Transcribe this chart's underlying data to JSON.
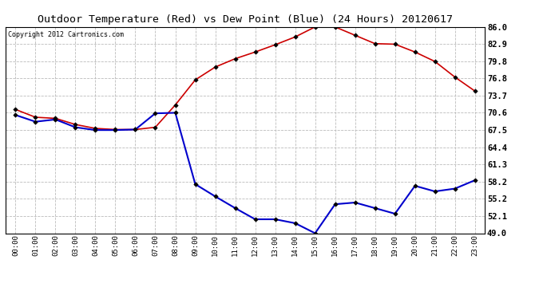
{
  "title": "Outdoor Temperature (Red) vs Dew Point (Blue) (24 Hours) 20120617",
  "copyright_text": "Copyright 2012 Cartronics.com",
  "x_labels": [
    "00:00",
    "01:00",
    "02:00",
    "03:00",
    "04:00",
    "05:00",
    "06:00",
    "07:00",
    "08:00",
    "09:00",
    "10:00",
    "11:00",
    "12:00",
    "13:00",
    "14:00",
    "15:00",
    "16:00",
    "17:00",
    "18:00",
    "19:00",
    "20:00",
    "21:00",
    "22:00",
    "23:00"
  ],
  "temp_red": [
    71.2,
    69.8,
    69.6,
    68.5,
    67.8,
    67.6,
    67.6,
    68.0,
    72.0,
    76.5,
    78.8,
    80.3,
    81.5,
    82.8,
    84.2,
    86.0,
    86.0,
    84.5,
    83.0,
    82.9,
    81.5,
    79.8,
    77.0,
    74.5
  ],
  "dew_blue": [
    70.2,
    69.0,
    69.4,
    68.0,
    67.5,
    67.5,
    67.6,
    70.5,
    70.6,
    57.8,
    55.6,
    53.5,
    51.5,
    51.5,
    50.8,
    49.0,
    54.2,
    54.5,
    53.5,
    52.5,
    57.5,
    56.5,
    57.0,
    58.5
  ],
  "y_ticks": [
    49.0,
    52.1,
    55.2,
    58.2,
    61.3,
    64.4,
    67.5,
    70.6,
    73.7,
    76.8,
    79.8,
    82.9,
    86.0
  ],
  "y_min": 49.0,
  "y_max": 86.0,
  "red_color": "#cc0000",
  "blue_color": "#0000cc",
  "bg_color": "#ffffff",
  "grid_color": "#bbbbbb",
  "title_fontsize": 9.5,
  "copyright_fontsize": 6.0
}
